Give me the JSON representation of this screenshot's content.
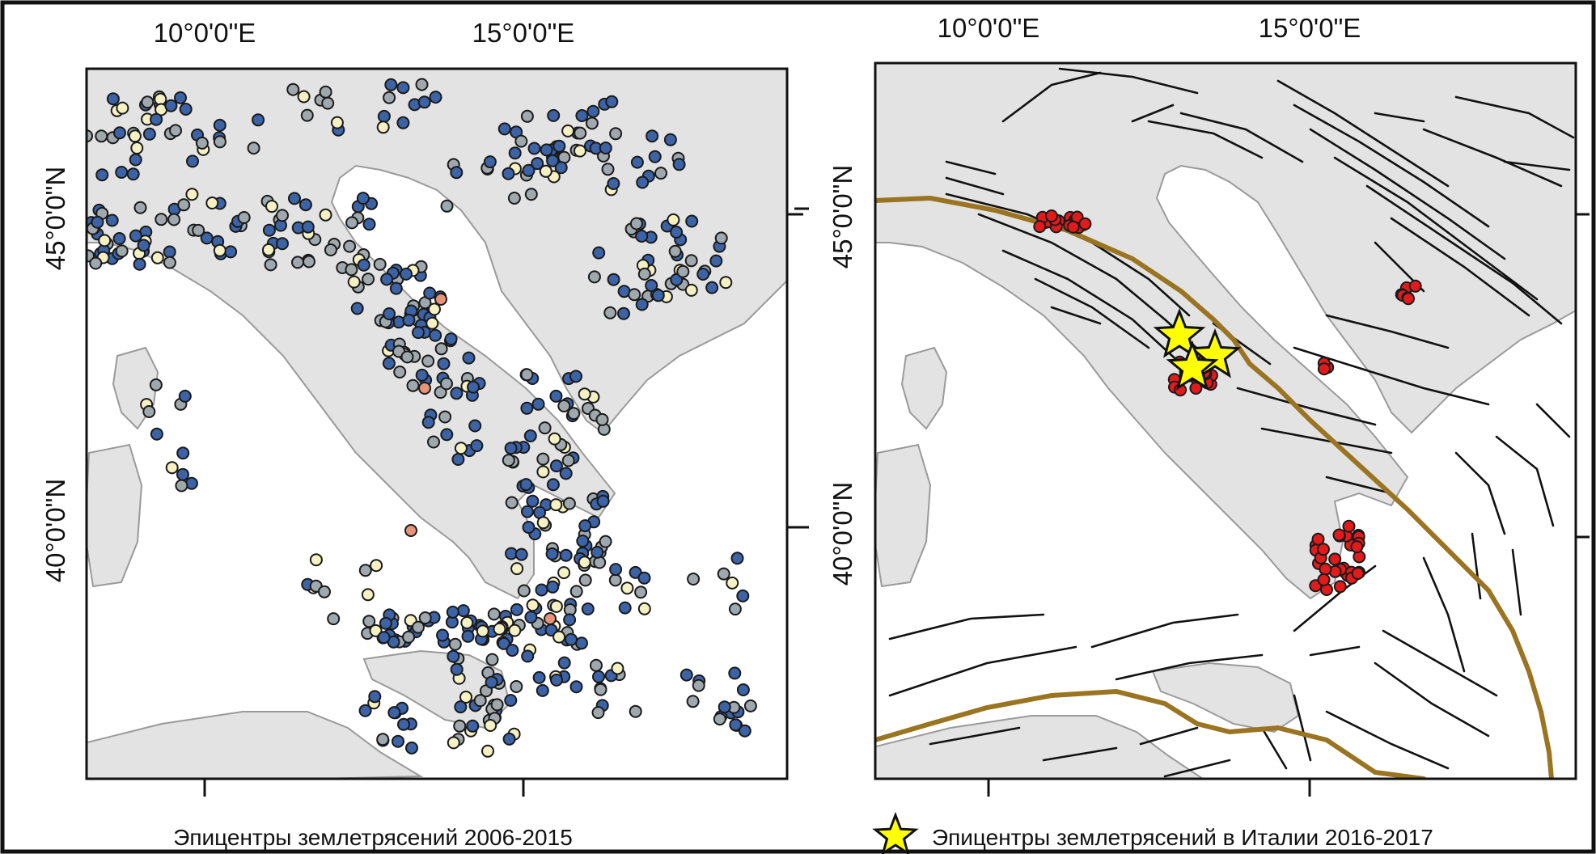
{
  "colors": {
    "border": "#111111",
    "land": "#e3e3e3",
    "coast": "#9a9a9a",
    "fault": "#111111",
    "plate_boundary": "#9a7420",
    "quake_blue": "#3c63a6",
    "quake_gray": "#9fa9ad",
    "quake_cream": "#f6f1c3",
    "quake_orange": "#e7957a",
    "quake_red": "#e31a1c",
    "star_fill": "#ffff00",
    "star_outline": "#111111"
  },
  "left_map": {
    "lon_labels": [
      "10°0'0\"E",
      "15°0'0\"E"
    ],
    "lat_labels": [
      "45°0'0\"N",
      "40°0'0\"N"
    ],
    "caption": "Эпицентры землетрясений 2006-2015",
    "marker_icon": "circle-dot-icon"
  },
  "right_map": {
    "lon_labels": [
      "10°0'0\"E",
      "15°0'0\"E"
    ],
    "lat_labels": [
      "45°0'0\"N",
      "40°0'0\"N"
    ],
    "legend_label": "Эпицентры землетрясений в Италии 2016-2017",
    "legend_icon": "star-icon"
  }
}
